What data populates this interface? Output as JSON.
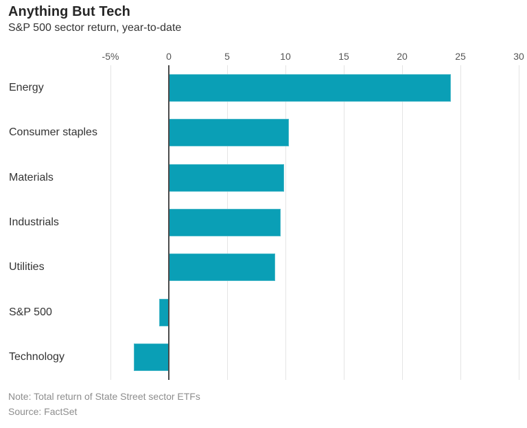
{
  "header": {
    "title": "Anything But Tech",
    "subtitle": "S&P 500 sector return, year-to-date"
  },
  "footer": {
    "note": "Note: Total return of State Street sector ETFs",
    "source": "Source: FactSet"
  },
  "colors": {
    "bar": "#0a9fb6",
    "grid": "#e4e4e4",
    "zero_line": "#4a4a4a",
    "title_text": "#262626",
    "category_text": "#333333",
    "tick_text": "#555555",
    "note_text": "#8d8d8d"
  },
  "chart_data": {
    "type": "bar",
    "orientation": "horizontal",
    "title": "Anything But Tech",
    "subtitle": "S&P 500 sector return, year-to-date",
    "categories": [
      "Energy",
      "Consumer staples",
      "Materials",
      "Industrials",
      "Utilities",
      "S&P 500",
      "Technology"
    ],
    "values": [
      24.2,
      10.3,
      9.9,
      9.6,
      9.1,
      -0.8,
      -3.0
    ],
    "xlabel": "",
    "ylabel": "",
    "xlim": [
      -5,
      30
    ],
    "xticks": [
      -5,
      0,
      5,
      10,
      15,
      20,
      25,
      30
    ],
    "xtick_labels": [
      "-5%",
      "0",
      "5",
      "10",
      "15",
      "20",
      "25",
      "30"
    ],
    "grid": true,
    "legend": false,
    "note": "Note: Total return of State Street sector ETFs",
    "source": "Source: FactSet"
  }
}
